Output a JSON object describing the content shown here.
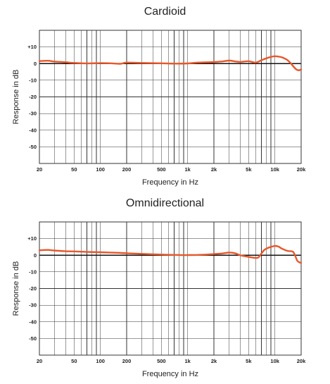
{
  "colors": {
    "curve": "#e8572a",
    "grid": "#333333",
    "background": "#ffffff"
  },
  "chart_data": [
    {
      "type": "line",
      "title": "Cardioid",
      "xlabel": "Frequency in Hz",
      "ylabel": "Response in dB",
      "xscale": "log",
      "xlim": [
        20,
        20000
      ],
      "ylim": [
        -60,
        20
      ],
      "grid": true,
      "xticks": [
        {
          "value": 20,
          "label": "20"
        },
        {
          "value": 50,
          "label": "50"
        },
        {
          "value": 100,
          "label": "100"
        },
        {
          "value": 200,
          "label": "200"
        },
        {
          "value": 500,
          "label": "500"
        },
        {
          "value": 1000,
          "label": "1k"
        },
        {
          "value": 2000,
          "label": "2k"
        },
        {
          "value": 5000,
          "label": "5k"
        },
        {
          "value": 10000,
          "label": "10k"
        },
        {
          "value": 20000,
          "label": "20k"
        }
      ],
      "yticks": [
        {
          "value": 10,
          "label": "+10"
        },
        {
          "value": 0,
          "label": "0"
        },
        {
          "value": -10,
          "label": "-10"
        },
        {
          "value": -20,
          "label": "-20"
        },
        {
          "value": -30,
          "label": "-30"
        },
        {
          "value": -40,
          "label": "-40"
        },
        {
          "value": -50,
          "label": "-50"
        }
      ],
      "series": [
        {
          "x": [
            20,
            25,
            30,
            40,
            50,
            70,
            100,
            130,
            170,
            200,
            300,
            500,
            700,
            1000,
            1300,
            2000,
            2500,
            3000,
            3500,
            4000,
            5000,
            6000,
            7000,
            8000,
            9000,
            10000,
            11000,
            12000,
            13000,
            14000,
            15000,
            17000,
            18000,
            19000,
            20000
          ],
          "y": [
            1.5,
            1.7,
            1.2,
            0.8,
            0.4,
            0.1,
            0.3,
            0.2,
            -0.1,
            0.6,
            0.4,
            0.2,
            0.0,
            0.1,
            0.6,
            0.9,
            1.3,
            1.8,
            1.3,
            1.0,
            1.4,
            0.6,
            2.0,
            3.2,
            4.0,
            4.4,
            4.2,
            3.8,
            3.0,
            2.0,
            0.5,
            -2.8,
            -3.8,
            -4.0,
            -3.5
          ]
        }
      ]
    },
    {
      "type": "line",
      "title": "Omnidirectional",
      "xlabel": "Frequency in Hz",
      "ylabel": "Response in dB",
      "xscale": "log",
      "xlim": [
        20,
        20000
      ],
      "ylim": [
        -60,
        20
      ],
      "grid": true,
      "xticks": [
        {
          "value": 20,
          "label": "20"
        },
        {
          "value": 50,
          "label": "50"
        },
        {
          "value": 100,
          "label": "100"
        },
        {
          "value": 200,
          "label": "200"
        },
        {
          "value": 500,
          "label": "500"
        },
        {
          "value": 1000,
          "label": "1k"
        },
        {
          "value": 2000,
          "label": "2k"
        },
        {
          "value": 5000,
          "label": "5k"
        },
        {
          "value": 10000,
          "label": "10k"
        },
        {
          "value": 20000,
          "label": "20k"
        }
      ],
      "yticks": [
        {
          "value": 10,
          "label": "+10"
        },
        {
          "value": 0,
          "label": "0"
        },
        {
          "value": -10,
          "label": "-10"
        },
        {
          "value": -20,
          "label": "-20"
        },
        {
          "value": -30,
          "label": "-30"
        },
        {
          "value": -40,
          "label": "-40"
        },
        {
          "value": -50,
          "label": "-50"
        }
      ],
      "series": [
        {
          "x": [
            20,
            25,
            30,
            40,
            50,
            70,
            100,
            150,
            200,
            300,
            500,
            700,
            1000,
            1500,
            2000,
            2500,
            3000,
            3500,
            4000,
            5000,
            6000,
            6500,
            7000,
            7500,
            8000,
            9000,
            10000,
            11000,
            12000,
            14000,
            16000,
            17000,
            18000,
            19000,
            20000
          ],
          "y": [
            3.0,
            3.2,
            2.8,
            2.4,
            2.3,
            2.0,
            1.8,
            1.5,
            1.2,
            0.8,
            0.4,
            0.2,
            0.1,
            0.3,
            0.7,
            1.1,
            1.6,
            1.2,
            0.0,
            -1.0,
            -1.6,
            -1.2,
            1.0,
            3.0,
            4.0,
            5.0,
            5.6,
            5.2,
            4.0,
            2.6,
            2.2,
            0.0,
            -3.2,
            -4.2,
            -4.6
          ]
        }
      ]
    }
  ]
}
